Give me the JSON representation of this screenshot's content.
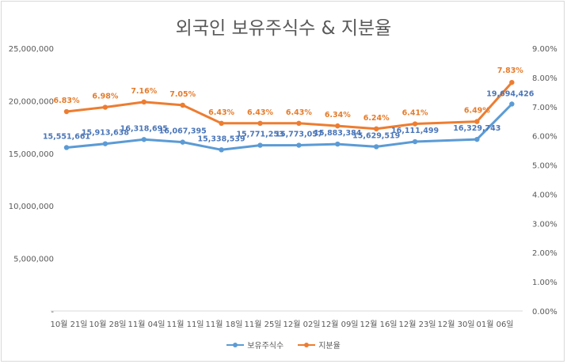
{
  "chart_data": {
    "type": "line",
    "title": "외국인 보유주식수 & 지분율",
    "categories": [
      "10월 21일",
      "10월 28일",
      "11월 04일",
      "11월 11일",
      "11월 18일",
      "11월 25일",
      "12월 02일",
      "12월 09일",
      "12월 16일",
      "12월 23일",
      "12월 30일",
      "01월 06일"
    ],
    "series": [
      {
        "name": "보유주식수",
        "axis": "left",
        "color": "#5b9bd5",
        "label_color": "#4a76b8",
        "values": [
          15551661,
          15913638,
          16318695,
          16067395,
          15338539,
          15771253,
          15773057,
          15883384,
          15629519,
          16111499,
          16329743,
          19694426
        ],
        "labels": [
          "15,551,661",
          "15,913,638",
          "16,318,695",
          "16,067,395",
          "15,338,539",
          "15,771,253",
          "15,773,057",
          "15,883,384",
          "15,629,519",
          "16,111,499",
          "16,329,743",
          "19,694,426"
        ]
      },
      {
        "name": "지분율",
        "axis": "right",
        "color": "#ed7d31",
        "label_color": "#e57c2b",
        "values": [
          6.83,
          6.98,
          7.16,
          7.05,
          6.43,
          6.43,
          6.43,
          6.34,
          6.24,
          6.41,
          6.49,
          7.83
        ],
        "labels": [
          "6.83%",
          "6.98%",
          "7.16%",
          "7.05%",
          "6.43%",
          "6.43%",
          "6.43%",
          "6.34%",
          "6.24%",
          "6.41%",
          "6.49%",
          "7.83%"
        ]
      }
    ],
    "x_positions": [
      0,
      1,
      2,
      3,
      4,
      5,
      6,
      7,
      8,
      9,
      10.6,
      11.5
    ],
    "left_axis": {
      "ylim": [
        0,
        25000000
      ],
      "ticks": [
        0,
        5000000,
        10000000,
        15000000,
        20000000,
        25000000
      ],
      "tick_labels": [
        "-",
        "5,000,000",
        "10,000,000",
        "15,000,000",
        "20,000,000",
        "25,000,000"
      ]
    },
    "right_axis": {
      "ylim": [
        0,
        9
      ],
      "ticks": [
        0,
        1,
        2,
        3,
        4,
        5,
        6,
        7,
        8,
        9
      ],
      "tick_labels": [
        "0.00%",
        "1.00%",
        "2.00%",
        "3.00%",
        "4.00%",
        "5.00%",
        "6.00%",
        "7.00%",
        "8.00%",
        "9.00%"
      ]
    },
    "grid": false,
    "legend_position": "bottom"
  }
}
